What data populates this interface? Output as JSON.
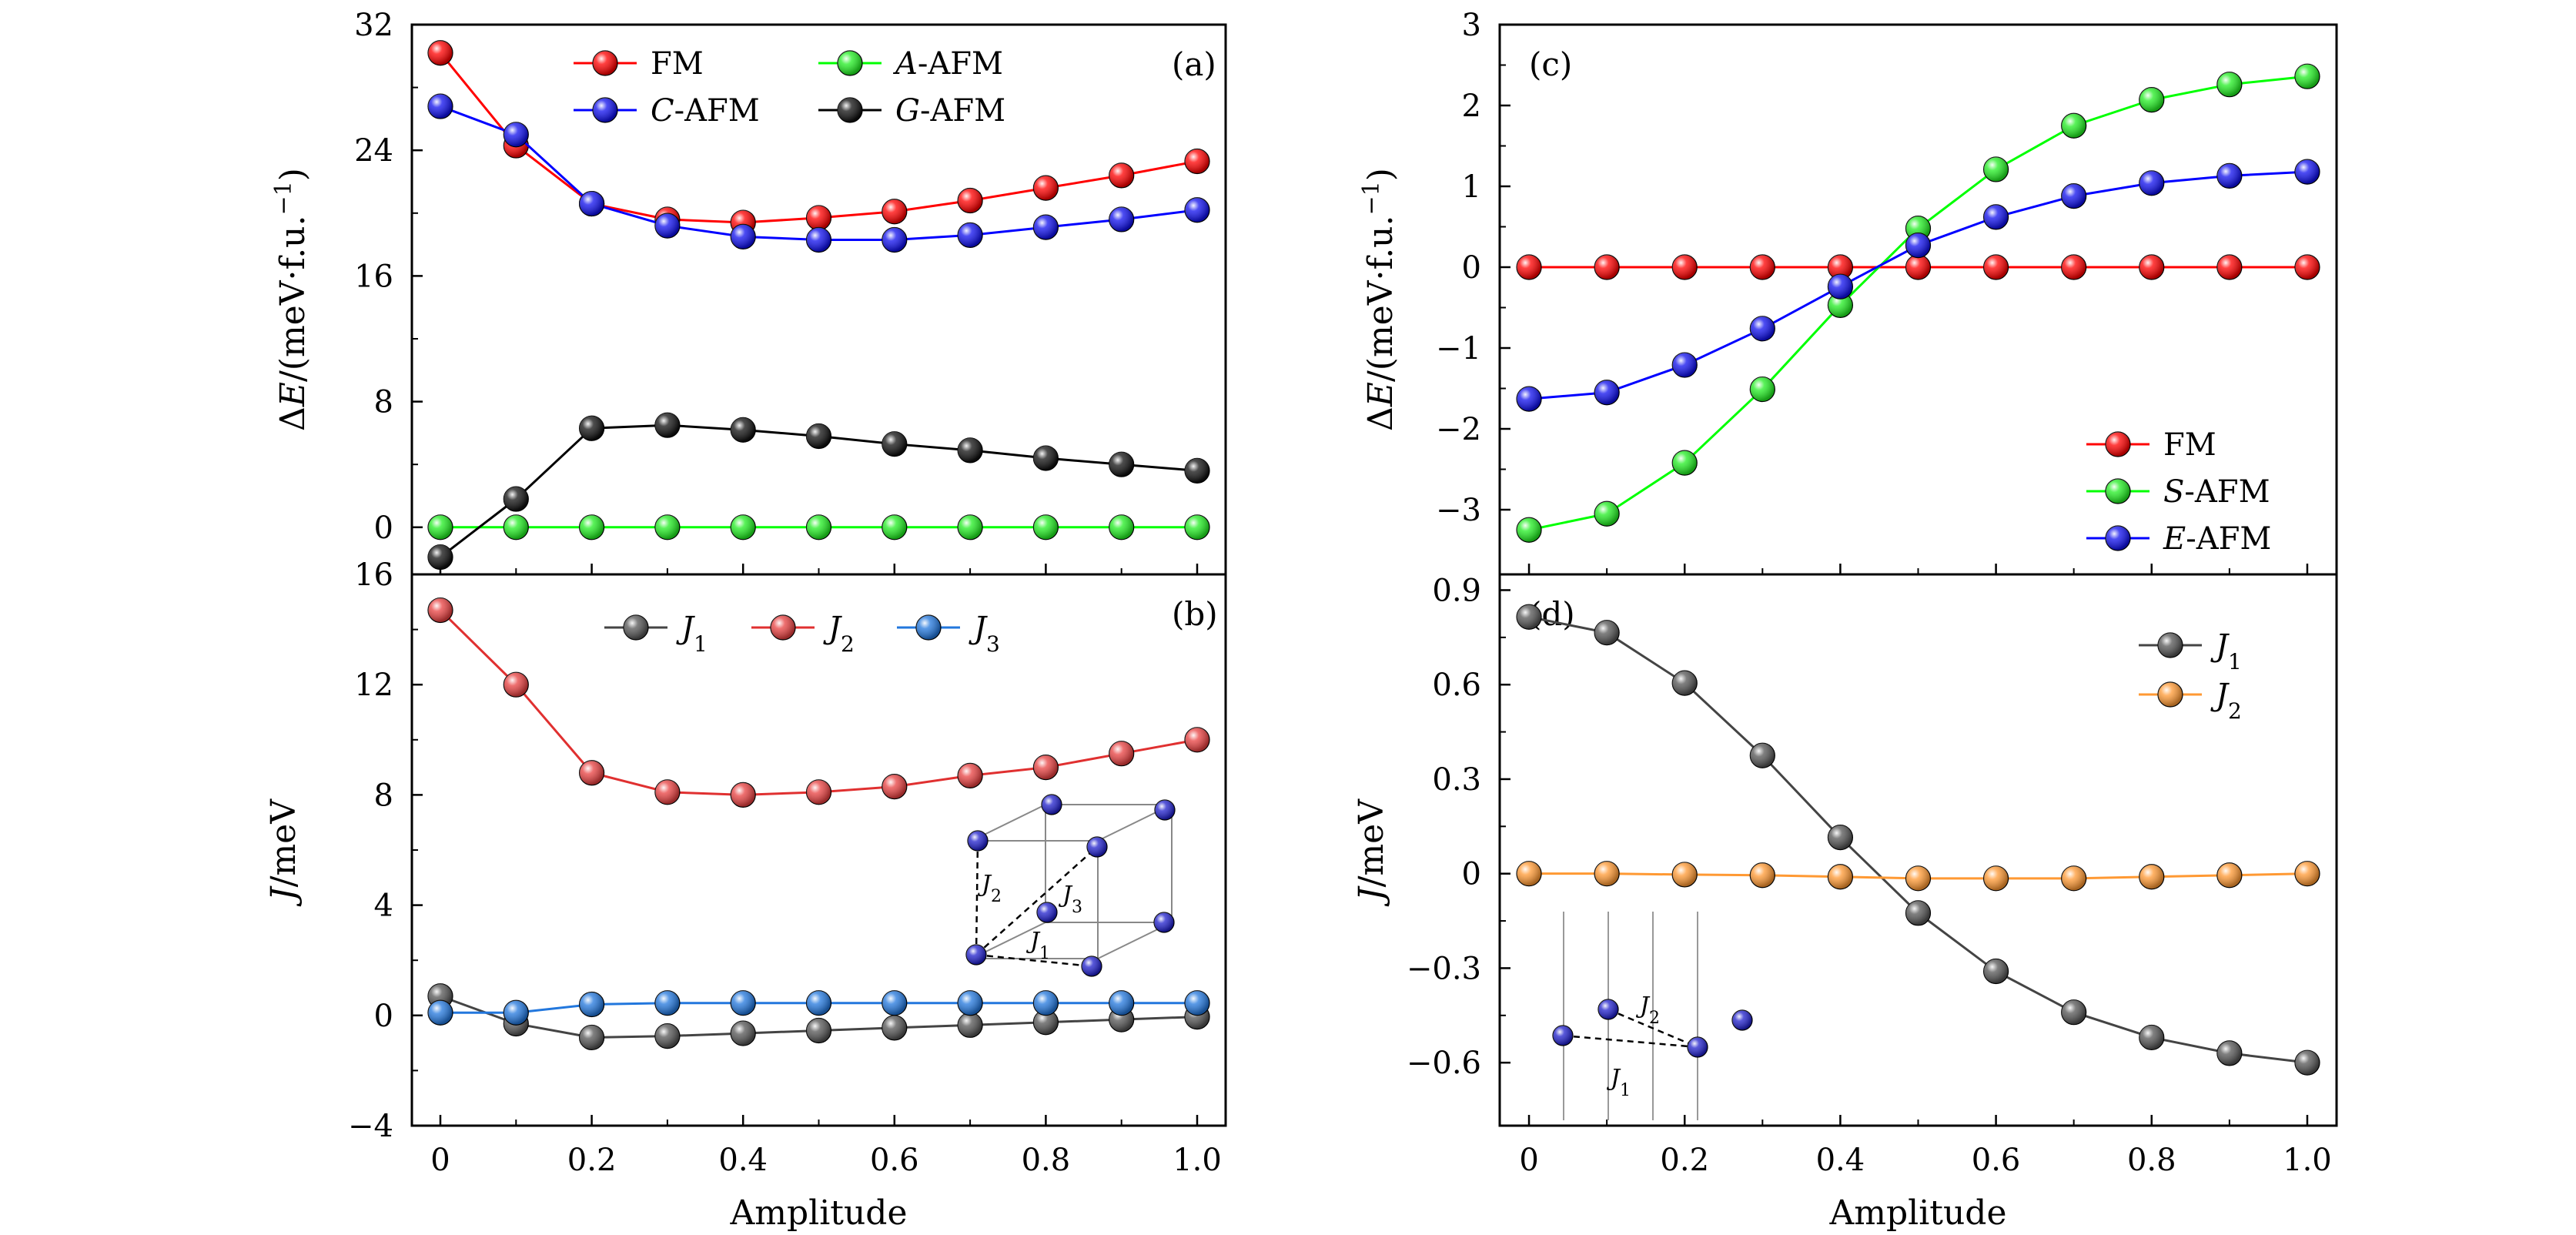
{
  "chart_data": [
    {
      "id": "a",
      "type": "line",
      "panel_label": "(a)",
      "xlabel": "",
      "ylabel": "ΔE/(meV·f.u.⁻¹)",
      "ylabel_parts": [
        "Δ",
        "E",
        "/(meV·f.u.",
        "−1",
        ")"
      ],
      "xlim": [
        0,
        1.0
      ],
      "ylim": [
        -3,
        32
      ],
      "yticks": [
        0,
        8,
        16,
        24,
        32
      ],
      "ytick_labels": [
        "0",
        "8",
        "16",
        "24",
        "32"
      ],
      "legend_position": "top-center",
      "series": [
        {
          "name": "FM",
          "name_parts": {
            "i": "",
            "r": "FM"
          },
          "color": "#ff0000",
          "line": "#ff0000",
          "x": [
            0,
            0.1,
            0.2,
            0.3,
            0.4,
            0.5,
            0.6,
            0.7,
            0.8,
            0.9,
            1.0
          ],
          "y": [
            30.2,
            24.3,
            20.6,
            19.6,
            19.4,
            19.7,
            20.1,
            20.8,
            21.6,
            22.4,
            23.3
          ]
        },
        {
          "name": "C-AFM",
          "name_parts": {
            "i": "C",
            "r": "-AFM"
          },
          "color": "#1010ee",
          "line": "#0000ff",
          "x": [
            0,
            0.1,
            0.2,
            0.3,
            0.4,
            0.5,
            0.6,
            0.7,
            0.8,
            0.9,
            1.0
          ],
          "y": [
            26.8,
            25.0,
            20.6,
            19.2,
            18.5,
            18.3,
            18.3,
            18.6,
            19.1,
            19.6,
            20.2
          ]
        },
        {
          "name": "A-AFM",
          "name_parts": {
            "i": "A",
            "r": "-AFM"
          },
          "color": "#22ee22",
          "line": "#00ff00",
          "x": [
            0,
            0.1,
            0.2,
            0.3,
            0.4,
            0.5,
            0.6,
            0.7,
            0.8,
            0.9,
            1.0
          ],
          "y": [
            0,
            0,
            0,
            0,
            0,
            0,
            0,
            0,
            0,
            0,
            0
          ]
        },
        {
          "name": "G-AFM",
          "name_parts": {
            "i": "G",
            "r": "-AFM"
          },
          "color": "#111111",
          "line": "#000000",
          "x": [
            0,
            0.1,
            0.2,
            0.3,
            0.4,
            0.5,
            0.6,
            0.7,
            0.8,
            0.9,
            1.0
          ],
          "y": [
            -1.9,
            1.8,
            6.3,
            6.5,
            6.2,
            5.8,
            5.3,
            4.9,
            4.4,
            4.0,
            3.6
          ]
        }
      ]
    },
    {
      "id": "b",
      "type": "line",
      "panel_label": "(b)",
      "xlabel": "Amplitude",
      "ylabel": "J/meV",
      "ylabel_parts": [
        "J",
        "/meV"
      ],
      "xlim": [
        0,
        1.0
      ],
      "ylim": [
        -4,
        16
      ],
      "yticks": [
        -4,
        0,
        4,
        8,
        12,
        16
      ],
      "ytick_labels": [
        "−4",
        "0",
        "4",
        "8",
        "12",
        "16"
      ],
      "xticks": [
        0,
        0.2,
        0.4,
        0.6,
        0.8,
        1.0
      ],
      "xtick_labels": [
        "0",
        "0.2",
        "0.4",
        "0.6",
        "0.8",
        "1.0"
      ],
      "legend_position": "top-center",
      "series": [
        {
          "name": "J1",
          "name_parts": {
            "i": "J",
            "sub": "1"
          },
          "color": "#555555",
          "line": "#444444",
          "x": [
            0,
            0.1,
            0.2,
            0.3,
            0.4,
            0.5,
            0.6,
            0.7,
            0.8,
            0.9,
            1.0
          ],
          "y": [
            0.7,
            -0.3,
            -0.8,
            -0.75,
            -0.65,
            -0.55,
            -0.45,
            -0.35,
            -0.25,
            -0.15,
            -0.05
          ]
        },
        {
          "name": "J2",
          "name_parts": {
            "i": "J",
            "sub": "2"
          },
          "color": "#e84040",
          "line": "#e03030",
          "x": [
            0,
            0.1,
            0.2,
            0.3,
            0.4,
            0.5,
            0.6,
            0.7,
            0.8,
            0.9,
            1.0
          ],
          "y": [
            14.7,
            12.0,
            8.8,
            8.1,
            8.0,
            8.1,
            8.3,
            8.7,
            9.0,
            9.5,
            10.0
          ]
        },
        {
          "name": "J3",
          "name_parts": {
            "i": "J",
            "sub": "3"
          },
          "color": "#2277dd",
          "line": "#2277dd",
          "x": [
            0,
            0.1,
            0.2,
            0.3,
            0.4,
            0.5,
            0.6,
            0.7,
            0.8,
            0.9,
            1.0
          ],
          "y": [
            0.1,
            0.1,
            0.4,
            0.45,
            0.45,
            0.45,
            0.45,
            0.45,
            0.45,
            0.45,
            0.45
          ]
        }
      ],
      "inset_labels": [
        "J2",
        "J3",
        "J1"
      ],
      "inset_label_parts": [
        {
          "i": "J",
          "sub": "2"
        },
        {
          "i": "J",
          "sub": "3"
        },
        {
          "i": "J",
          "sub": "1"
        }
      ]
    },
    {
      "id": "c",
      "type": "line",
      "panel_label": "(c)",
      "xlabel": "",
      "ylabel": "ΔE/(meV·f.u.⁻¹)",
      "ylabel_parts": [
        "Δ",
        "E",
        "/(meV·f.u.",
        "−1",
        ")"
      ],
      "xlim": [
        0,
        1.0
      ],
      "ylim": [
        -3.8,
        3
      ],
      "yticks": [
        -3,
        -2,
        -1,
        0,
        1,
        2,
        3
      ],
      "ytick_labels": [
        "−3",
        "−2",
        "−1",
        "0",
        "1",
        "2",
        "3"
      ],
      "legend_position": "bottom-right",
      "series": [
        {
          "name": "FM",
          "name_parts": {
            "i": "",
            "r": "FM"
          },
          "color": "#ff0000",
          "line": "#ff0000",
          "x": [
            0,
            0.1,
            0.2,
            0.3,
            0.4,
            0.5,
            0.6,
            0.7,
            0.8,
            0.9,
            1.0
          ],
          "y": [
            0,
            0,
            0,
            0,
            0,
            0,
            0,
            0,
            0,
            0,
            0
          ]
        },
        {
          "name": "S-AFM",
          "name_parts": {
            "i": "S",
            "r": "-AFM"
          },
          "color": "#22ee22",
          "line": "#00ff00",
          "x": [
            0,
            0.1,
            0.2,
            0.3,
            0.4,
            0.5,
            0.6,
            0.7,
            0.8,
            0.9,
            1.0
          ],
          "y": [
            -3.25,
            -3.05,
            -2.42,
            -1.51,
            -0.47,
            0.48,
            1.21,
            1.75,
            2.07,
            2.26,
            2.36
          ]
        },
        {
          "name": "E-AFM",
          "name_parts": {
            "i": "E",
            "r": "-AFM"
          },
          "color": "#1010ee",
          "line": "#0000ff",
          "x": [
            0,
            0.1,
            0.2,
            0.3,
            0.4,
            0.5,
            0.6,
            0.7,
            0.8,
            0.9,
            1.0
          ],
          "y": [
            -1.63,
            -1.55,
            -1.21,
            -0.76,
            -0.24,
            0.27,
            0.62,
            0.88,
            1.04,
            1.13,
            1.18
          ]
        }
      ]
    },
    {
      "id": "d",
      "type": "line",
      "panel_label": "(d)",
      "xlabel": "Amplitude",
      "ylabel": "J/meV",
      "ylabel_parts": [
        "J",
        "/meV"
      ],
      "xlim": [
        0,
        1.0
      ],
      "ylim": [
        -0.8,
        0.95
      ],
      "yticks": [
        -0.6,
        -0.3,
        0,
        0.3,
        0.6,
        0.9
      ],
      "ytick_labels": [
        "−0.6",
        "−0.3",
        "0",
        "0.3",
        "0.6",
        "0.9"
      ],
      "xticks": [
        0,
        0.2,
        0.4,
        0.6,
        0.8,
        1.0
      ],
      "xtick_labels": [
        "0",
        "0.2",
        "0.4",
        "0.6",
        "0.8",
        "1.0"
      ],
      "legend_position": "top-right",
      "series": [
        {
          "name": "J1",
          "name_parts": {
            "i": "J",
            "sub": "1"
          },
          "color": "#555555",
          "line": "#444444",
          "x": [
            0,
            0.1,
            0.2,
            0.3,
            0.4,
            0.5,
            0.6,
            0.7,
            0.8,
            0.9,
            1.0
          ],
          "y": [
            0.815,
            0.765,
            0.605,
            0.375,
            0.115,
            -0.125,
            -0.31,
            -0.44,
            -0.52,
            -0.57,
            -0.6
          ]
        },
        {
          "name": "J2",
          "name_parts": {
            "i": "J",
            "sub": "2"
          },
          "color": "#ff9933",
          "line": "#ff9933",
          "x": [
            0,
            0.1,
            0.2,
            0.3,
            0.4,
            0.5,
            0.6,
            0.7,
            0.8,
            0.9,
            1.0
          ],
          "y": [
            0.0,
            0.0,
            -0.003,
            -0.005,
            -0.01,
            -0.015,
            -0.015,
            -0.015,
            -0.01,
            -0.005,
            0.0
          ]
        }
      ],
      "inset_labels": [
        "J2",
        "J1"
      ],
      "inset_label_parts": [
        {
          "i": "J",
          "sub": "2"
        },
        {
          "i": "J",
          "sub": "1"
        }
      ]
    }
  ]
}
